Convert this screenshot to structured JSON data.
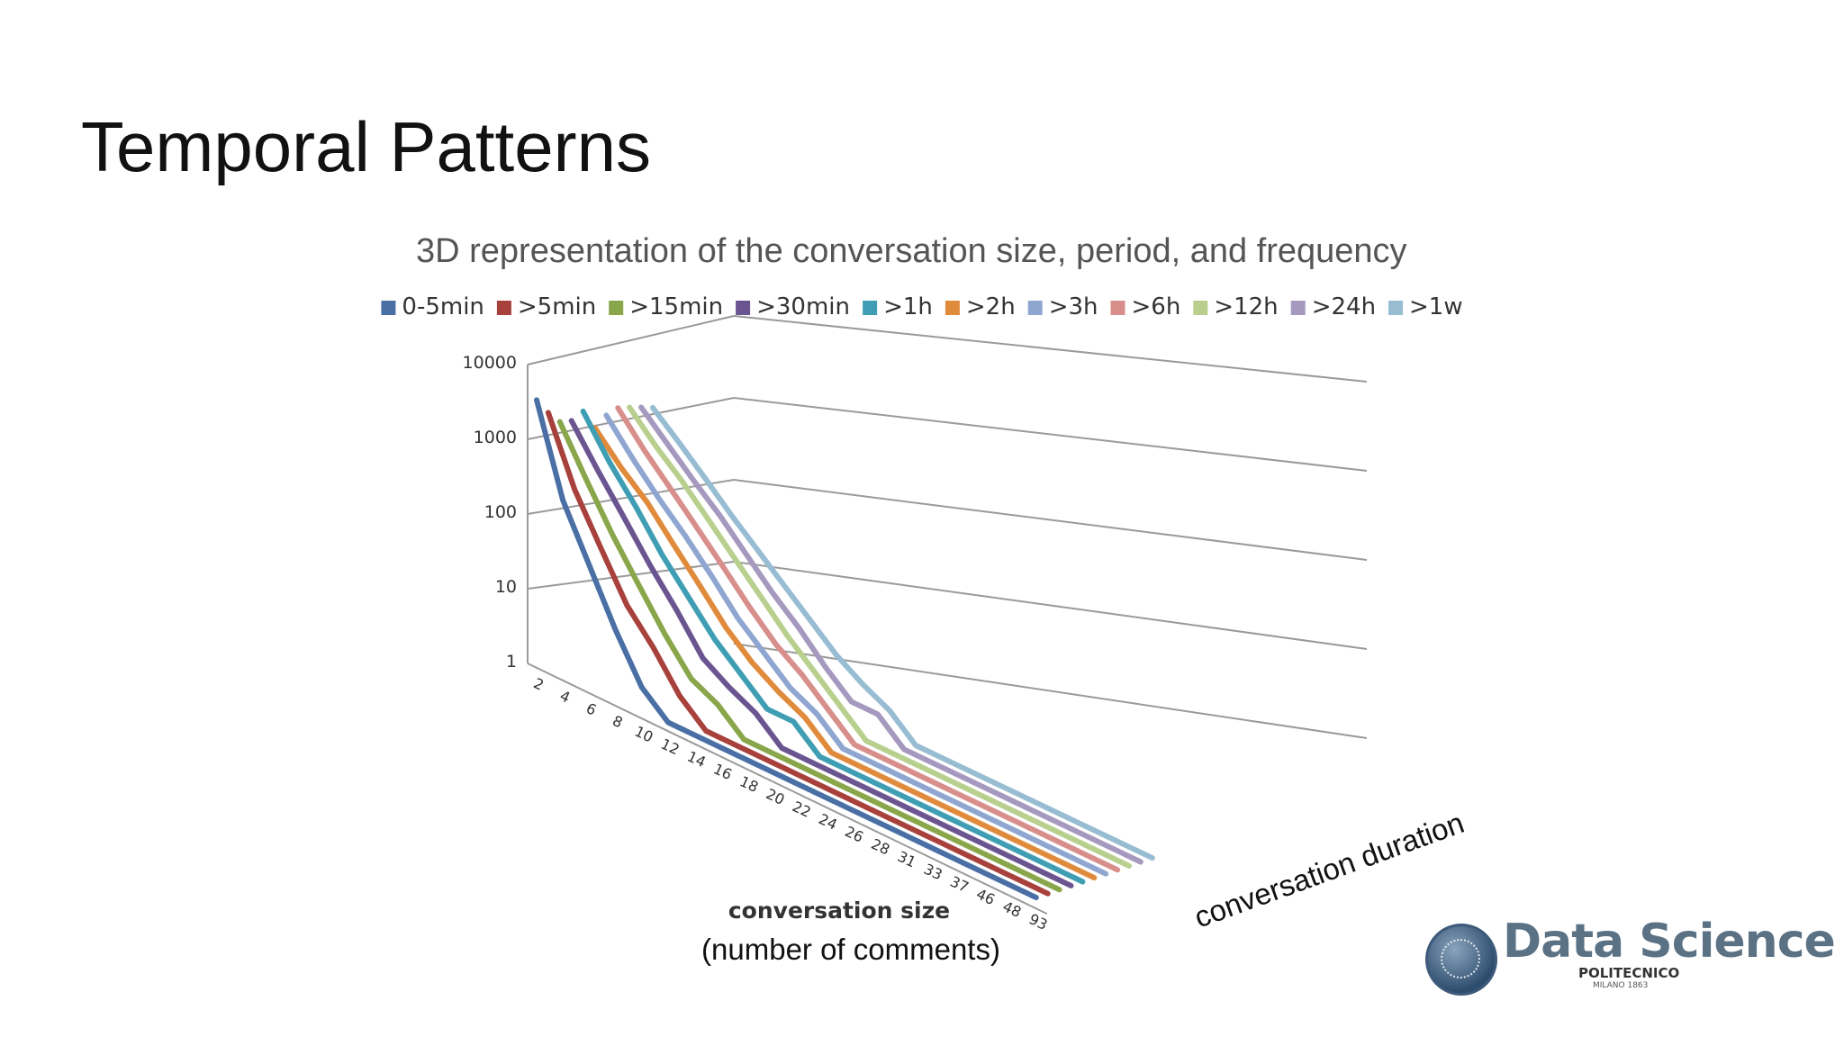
{
  "slide": {
    "title": "Temporal Patterns"
  },
  "logo": {
    "name": "Data Science",
    "line1": "POLITECNICO",
    "line2": "MILANO 1863"
  },
  "chart_data": {
    "type": "line",
    "subtype": "3d-line",
    "title": "3D representation of the conversation size, period, and frequency",
    "xlabel": "conversation size",
    "xlabel_sub": "(number of comments)",
    "zlabel": "conversation duration",
    "yscale": "log",
    "ylim": [
      1,
      10000
    ],
    "yticks": [
      "10000",
      "1000",
      "100",
      "10",
      "1"
    ],
    "grid": true,
    "legend_position": "top",
    "categories": [
      "2",
      "4",
      "6",
      "8",
      "10",
      "12",
      "14",
      "16",
      "18",
      "20",
      "22",
      "24",
      "26",
      "28",
      "31",
      "33",
      "37",
      "46",
      "48",
      "93"
    ],
    "series": [
      {
        "name": "0-5min",
        "color": "#4a6fa5",
        "values": [
          3000,
          200,
          40,
          8,
          2,
          1,
          1,
          1,
          1,
          1,
          1,
          1,
          1,
          1,
          1,
          1,
          1,
          1,
          1,
          1
        ]
      },
      {
        "name": ">5min",
        "color": "#a8413c",
        "values": [
          1800,
          250,
          60,
          15,
          6,
          2,
          1,
          1,
          1,
          1,
          1,
          1,
          1,
          1,
          1,
          1,
          1,
          1,
          1,
          1
        ]
      },
      {
        "name": ">15min",
        "color": "#8aa64a",
        "values": [
          1200,
          300,
          80,
          25,
          8,
          3,
          2,
          1,
          1,
          1,
          1,
          1,
          1,
          1,
          1,
          1,
          1,
          1,
          1,
          1
        ]
      },
      {
        "name": ">30min",
        "color": "#6b5591",
        "values": [
          1100,
          350,
          120,
          40,
          15,
          5,
          3,
          2,
          1,
          1,
          1,
          1,
          1,
          1,
          1,
          1,
          1,
          1,
          1,
          1
        ]
      },
      {
        "name": ">1h",
        "color": "#3f9eb3",
        "values": [
          1300,
          400,
          150,
          50,
          20,
          8,
          4,
          2,
          2,
          1,
          1,
          1,
          1,
          1,
          1,
          1,
          1,
          1,
          1,
          1
        ]
      },
      {
        "name": ">2h",
        "color": "#e08a3c",
        "values": [
          700,
          300,
          150,
          60,
          25,
          10,
          5,
          3,
          2,
          1,
          1,
          1,
          1,
          1,
          1,
          1,
          1,
          1,
          1,
          1
        ]
      },
      {
        "name": ">3h",
        "color": "#8fa6d0",
        "values": [
          900,
          350,
          150,
          70,
          30,
          12,
          6,
          3,
          2,
          1,
          1,
          1,
          1,
          1,
          1,
          1,
          1,
          1,
          1,
          1
        ]
      },
      {
        "name": ">6h",
        "color": "#d88f8c",
        "values": [
          1000,
          400,
          180,
          80,
          35,
          15,
          7,
          4,
          2,
          1,
          1,
          1,
          1,
          1,
          1,
          1,
          1,
          1,
          1,
          1
        ]
      },
      {
        "name": ">12h",
        "color": "#b8cf8e",
        "values": [
          900,
          400,
          200,
          90,
          40,
          18,
          8,
          4,
          2,
          1,
          1,
          1,
          1,
          1,
          1,
          1,
          1,
          1,
          1,
          1
        ]
      },
      {
        "name": ">24h",
        "color": "#a699bf",
        "values": [
          800,
          380,
          180,
          90,
          40,
          18,
          9,
          4,
          2,
          2,
          1,
          1,
          1,
          1,
          1,
          1,
          1,
          1,
          1,
          1
        ]
      },
      {
        "name": ">1w",
        "color": "#98bdd3",
        "values": [
          700,
          350,
          170,
          80,
          40,
          20,
          10,
          5,
          3,
          2,
          1,
          1,
          1,
          1,
          1,
          1,
          1,
          1,
          1,
          1
        ]
      }
    ]
  }
}
